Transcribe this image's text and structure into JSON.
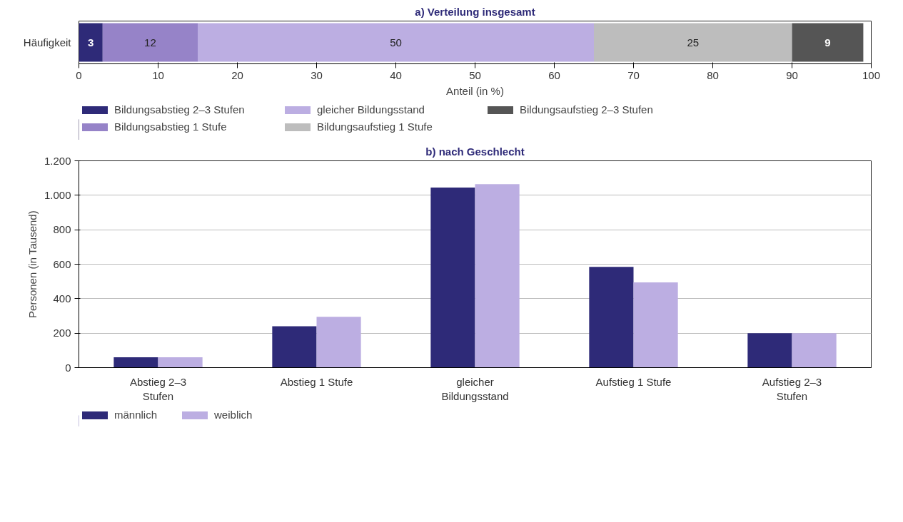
{
  "chart_data": [
    {
      "type": "bar",
      "orientation": "horizontal",
      "stacked": true,
      "title": "a) Verteilung insgesamt",
      "xlabel": "Anteil (in %)",
      "categories": [
        "Häufigkeit"
      ],
      "xlim": [
        0,
        100
      ],
      "xticks": [
        0,
        10,
        20,
        30,
        40,
        50,
        60,
        70,
        80,
        90,
        100
      ],
      "grid": false,
      "legend": "bottom",
      "data_labels": true,
      "series": [
        {
          "name": "Bildungsabstieg 2–3 Stufen",
          "color": "#2e2a78",
          "values": [
            3
          ]
        },
        {
          "name": "Bildungsabstieg 1 Stufe",
          "color": "#9683c8",
          "values": [
            12
          ]
        },
        {
          "name": "gleicher Bildungsstand",
          "color": "#bcaee2",
          "values": [
            50
          ]
        },
        {
          "name": "Bildungsaufstieg 1 Stufe",
          "color": "#bdbdbd",
          "values": [
            25
          ]
        },
        {
          "name": "Bildungsaufstieg 2–3 Stufen",
          "color": "#555555",
          "values": [
            9
          ]
        }
      ]
    },
    {
      "type": "bar",
      "title": "b) nach Geschlecht",
      "ylabel": "Personen (in Tausend)",
      "categories": [
        "Abstieg 2–3 Stufen",
        "Abstieg 1 Stufe",
        "gleicher Bildungsstand",
        "Aufstieg 1 Stufe",
        "Aufstieg 2–3 Stufen"
      ],
      "ylim": [
        0,
        1200
      ],
      "yticks": [
        0,
        200,
        400,
        600,
        800,
        {
          "value": 1000,
          "label": "1.000"
        },
        {
          "value": 1200,
          "label": "1.200"
        }
      ],
      "grid": "y",
      "legend": "bottom left",
      "series": [
        {
          "name": "männlich",
          "color": "#2e2a78",
          "values": [
            60,
            240,
            1045,
            585,
            200
          ]
        },
        {
          "name": "weiblich",
          "color": "#bcaee2",
          "values": [
            60,
            295,
            1065,
            495,
            200
          ]
        }
      ]
    }
  ]
}
